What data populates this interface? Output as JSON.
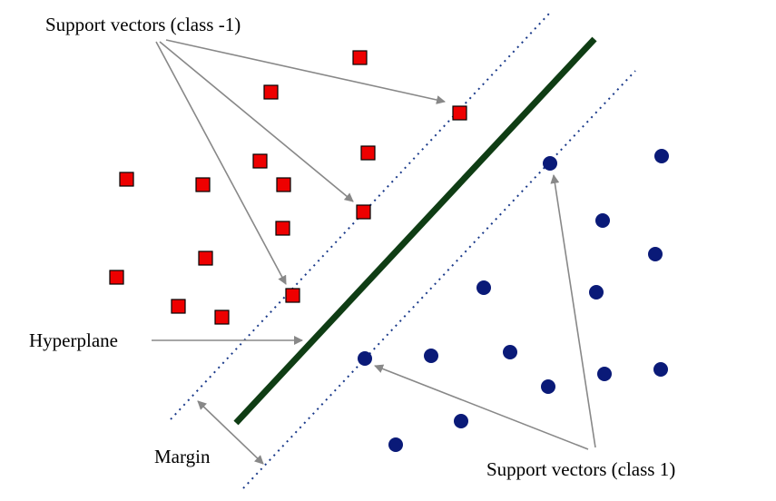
{
  "labels": {
    "support_vectors_neg": "Support vectors (class -1)",
    "support_vectors_pos": "Support vectors (class 1)",
    "hyperplane": "Hyperplane",
    "margin": "Margin"
  },
  "colors": {
    "class_neg_fill": "#ee0000",
    "class_neg_stroke": "#000000",
    "class_pos_fill": "#0a1a78",
    "hyperplane": "#0f3d14",
    "margin_lines": "#1a3a8a",
    "arrows": "#888888"
  },
  "legend_shapes": {
    "class_neg": "red-square",
    "class_pos": "navy-circle"
  }
}
